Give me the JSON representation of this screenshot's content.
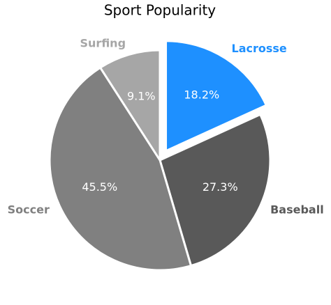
{
  "chart_data": {
    "type": "pie",
    "title": "Sport Popularity",
    "categories": [
      "Lacrosse",
      "Baseball",
      "Soccer",
      "Surfing"
    ],
    "values": [
      18.2,
      27.3,
      45.5,
      9.1
    ],
    "value_labels": [
      "18.2%",
      "27.3%",
      "45.5%",
      "9.1%"
    ],
    "colors": [
      "#1e90ff",
      "#595959",
      "#808080",
      "#a6a6a6"
    ],
    "explode": [
      0.1,
      0,
      0,
      0
    ]
  }
}
